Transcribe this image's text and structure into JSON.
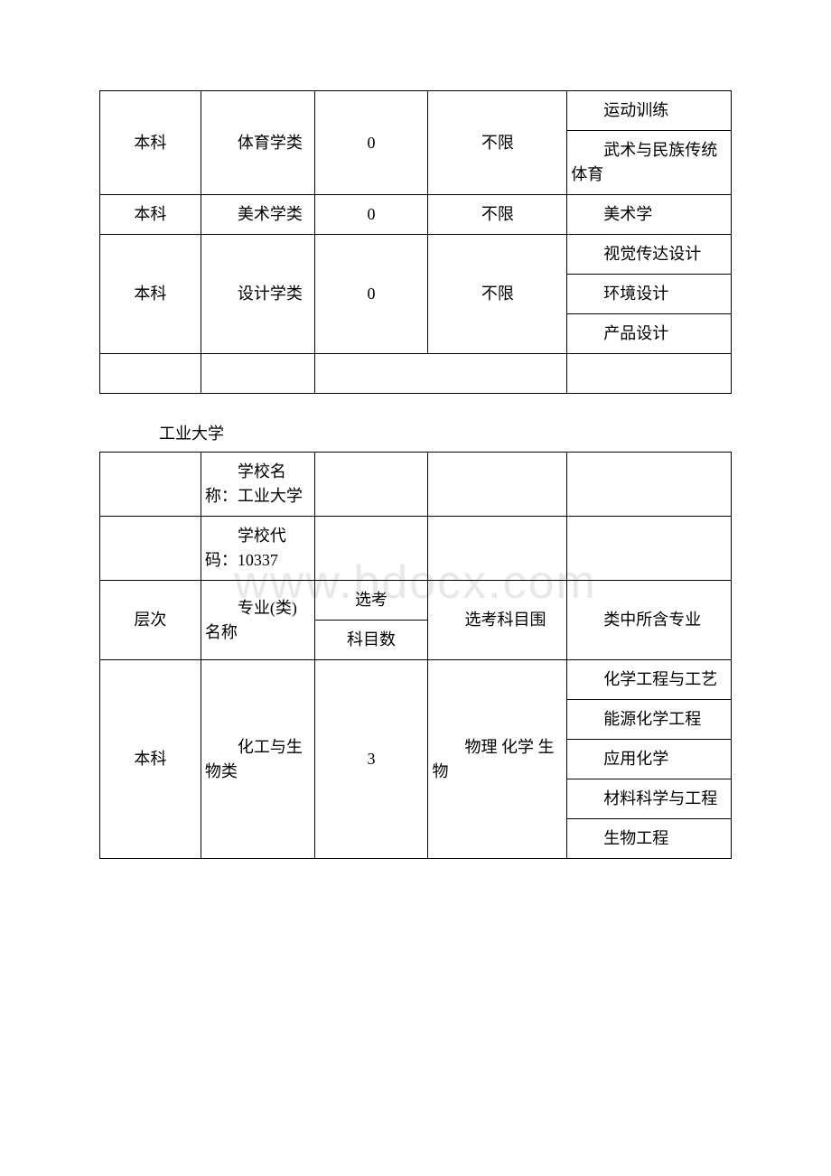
{
  "watermark": "www.bdocx.com",
  "table1": {
    "rows": [
      {
        "level": "本科",
        "category": "体育学类",
        "count": "0",
        "scope": "不限",
        "majors": [
          "运动训练",
          "武术与民族传统体育"
        ]
      },
      {
        "level": "本科",
        "category": "美术学类",
        "count": "0",
        "scope": "不限",
        "majors": [
          "美术学"
        ]
      },
      {
        "level": "本科",
        "category": "设计学类",
        "count": "0",
        "scope": "不限",
        "majors": [
          "视觉传达设计",
          "环境设计",
          "产品设计"
        ]
      }
    ]
  },
  "section2_title": "工业大学",
  "table2": {
    "school_name_label": "学校名称：工业大学",
    "school_code_label": "学校代码：10337",
    "headers": {
      "level": "层次",
      "category": "专业(类)名称",
      "count_l1": "选考",
      "count_l2": "科目数",
      "scope": "选考科目围",
      "major": "类中所含专业"
    },
    "rows": [
      {
        "level": "本科",
        "category": "化工与生物类",
        "count": "3",
        "scope": "物理 化学 生物",
        "majors": [
          "化学工程与工艺",
          "能源化学工程",
          "应用化学",
          "材料科学与工程",
          "生物工程"
        ]
      }
    ]
  }
}
